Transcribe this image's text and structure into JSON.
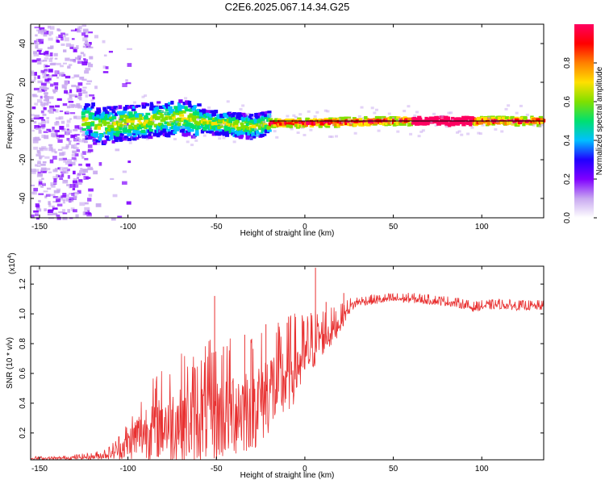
{
  "figure": {
    "title": "C2E6.2025.067.14.34.G25"
  },
  "chart_data": [
    {
      "type": "heatmap",
      "xlabel": "Height of straight line (km)",
      "ylabel": "Frequency (Hz)",
      "xlim": [
        -155,
        135
      ],
      "ylim": [
        -50,
        50
      ],
      "xticks": [
        -150,
        -100,
        -50,
        0,
        50,
        100
      ],
      "yticks": [
        -40,
        -20,
        0,
        20,
        40
      ],
      "ridge_frequency_hz": 0,
      "ridge_profile": [
        {
          "x": -120,
          "y": -3
        },
        {
          "x": -110,
          "y": -2
        },
        {
          "x": -100,
          "y": -1
        },
        {
          "x": -90,
          "y": 0
        },
        {
          "x": -80,
          "y": 1
        },
        {
          "x": -70,
          "y": 2
        },
        {
          "x": -60,
          "y": 0
        },
        {
          "x": -50,
          "y": -1
        },
        {
          "x": -40,
          "y": -2
        },
        {
          "x": -30,
          "y": -3
        },
        {
          "x": -20,
          "y": -1
        },
        {
          "x": 0,
          "y": -1
        },
        {
          "x": 50,
          "y": 0
        },
        {
          "x": 100,
          "y": 0
        },
        {
          "x": 135,
          "y": 0
        }
      ],
      "colorbar": {
        "label": "Normalized spectral amplitude",
        "range": [
          0,
          1
        ],
        "ticks": [
          "0.0",
          "0.2",
          "0.4",
          "0.6",
          "0.8"
        ],
        "tick_values": [
          0.0,
          0.2,
          0.4,
          0.6,
          0.8
        ],
        "colors": [
          "#ffffff",
          "#c8a8f0",
          "#8000ff",
          "#2000ff",
          "#00c0ff",
          "#00e070",
          "#80e000",
          "#ffe000",
          "#ff8000",
          "#ff0000",
          "#ff0060"
        ]
      }
    },
    {
      "type": "line",
      "xlabel": "Height of straight line (km)",
      "ylabel": "SNR (10 * v/v)",
      "multiplier_label": "(x10",
      "multiplier_exp": "4",
      "multiplier_close": ")",
      "xlim": [
        -155,
        135
      ],
      "ylim": [
        0.02,
        1.32
      ],
      "xticks": [
        -150,
        -100,
        -50,
        0,
        50,
        100
      ],
      "yticks": [
        "0.2",
        "0.4",
        "0.6",
        "0.8",
        "1.0",
        "1.2"
      ],
      "ytick_values": [
        0.2,
        0.4,
        0.6,
        0.8,
        1.0,
        1.2
      ],
      "color": "#e83030",
      "series": [
        {
          "x": [
            -155,
            -140,
            -120,
            -110,
            -105,
            -100,
            -95,
            -90,
            -85,
            -80,
            -75,
            -70,
            -65,
            -60,
            -55,
            -52,
            -50,
            -48,
            -45,
            -40,
            -35,
            -30,
            -25,
            -20,
            -15,
            -10,
            -5,
            0,
            3,
            6,
            8,
            10,
            15,
            20,
            25,
            30,
            40,
            50,
            60,
            70,
            80,
            90,
            95,
            100,
            110,
            120,
            135
          ],
          "y": [
            0.03,
            0.03,
            0.04,
            0.06,
            0.09,
            0.13,
            0.18,
            0.22,
            0.24,
            0.27,
            0.26,
            0.3,
            0.28,
            0.3,
            0.32,
            0.35,
            0.3,
            0.32,
            0.34,
            0.36,
            0.37,
            0.4,
            0.42,
            0.5,
            0.5,
            0.58,
            0.65,
            0.7,
            0.76,
            0.8,
            0.84,
            0.85,
            0.88,
            0.95,
            1.04,
            1.08,
            1.09,
            1.1,
            1.1,
            1.09,
            1.08,
            1.06,
            1.04,
            1.05,
            1.06,
            1.05,
            1.05
          ],
          "spread": [
            0.01,
            0.01,
            0.02,
            0.04,
            0.08,
            0.12,
            0.18,
            0.22,
            0.25,
            0.28,
            0.3,
            0.32,
            0.33,
            0.34,
            0.35,
            0.36,
            0.36,
            0.36,
            0.36,
            0.36,
            0.36,
            0.35,
            0.35,
            0.34,
            0.32,
            0.3,
            0.26,
            0.22,
            0.2,
            0.18,
            0.17,
            0.15,
            0.12,
            0.08,
            0.05,
            0.03,
            0.03,
            0.03,
            0.03,
            0.03,
            0.03,
            0.03,
            0.03,
            0.03,
            0.03,
            0.03,
            0.03
          ]
        }
      ],
      "spikes": [
        {
          "x": -51,
          "y": 1.12
        },
        {
          "x": -46,
          "y": 0.78
        },
        {
          "x": -34,
          "y": 0.86
        },
        {
          "x": -22,
          "y": 0.93
        },
        {
          "x": -10,
          "y": 0.94
        },
        {
          "x": 6,
          "y": 1.31
        },
        {
          "x": 12,
          "y": 1.08
        },
        {
          "x": 22,
          "y": 1.14
        }
      ]
    }
  ]
}
